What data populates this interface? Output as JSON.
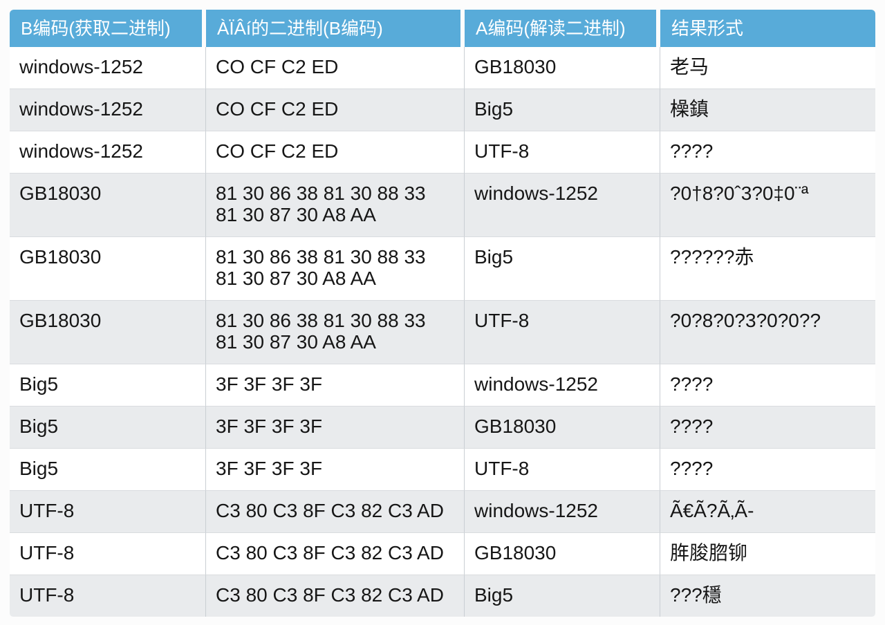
{
  "colors": {
    "header_bg": "#58abd9",
    "header_text": "#ffffff",
    "row_bg": "#ffffff",
    "row_alt_bg": "#e9ebed",
    "column_divider": "#c9ced3",
    "row_divider": "#d9dcdf",
    "page_bg": "#fcfcfc",
    "body_text": "#161616"
  },
  "table": {
    "columns": [
      {
        "key": "b-encoding",
        "label": "B编码(获取二进制)"
      },
      {
        "key": "binary",
        "label": "ÀÏÂí的二进制(B编码)"
      },
      {
        "key": "a-encoding",
        "label": "A编码(解读二进制)"
      },
      {
        "key": "result",
        "label": "结果形式"
      }
    ],
    "rows": [
      [
        "windows-1252",
        "CO CF C2 ED",
        "GB18030",
        "老马"
      ],
      [
        "windows-1252",
        "CO CF C2 ED",
        "Big5",
        "橾鎮"
      ],
      [
        "windows-1252",
        "CO CF C2 ED",
        "UTF-8",
        "????"
      ],
      [
        "GB18030",
        "81 30 86 38 81 30 88 33\n81 30 87 30 A8 AA",
        "windows-1252",
        "?0†8?0ˆ3?0‡0¨ª"
      ],
      [
        "GB18030",
        "81 30 86 38 81 30 88 33\n81 30 87 30 A8 AA",
        "Big5",
        "??????赤"
      ],
      [
        "GB18030",
        "81 30 86 38 81 30 88 33\n81 30 87 30 A8 AA",
        "UTF-8",
        "?0?8?0?3?0?0??"
      ],
      [
        "Big5",
        "3F 3F 3F 3F",
        "windows-1252",
        "????"
      ],
      [
        "Big5",
        "3F 3F 3F 3F",
        "GB18030",
        "????"
      ],
      [
        "Big5",
        "3F 3F 3F 3F",
        "UTF-8",
        "????"
      ],
      [
        "UTF-8",
        "C3 80 C3 8F C3 82 C3 AD",
        "windows-1252",
        "Ã€Ã?Ã‚Ã-"
      ],
      [
        "UTF-8",
        "C3 80 C3 8F C3 82 C3 AD",
        "GB18030",
        "脌脧脗铆"
      ],
      [
        "UTF-8",
        "C3 80 C3 8F C3 82 C3 AD",
        "Big5",
        "???穩"
      ]
    ]
  }
}
